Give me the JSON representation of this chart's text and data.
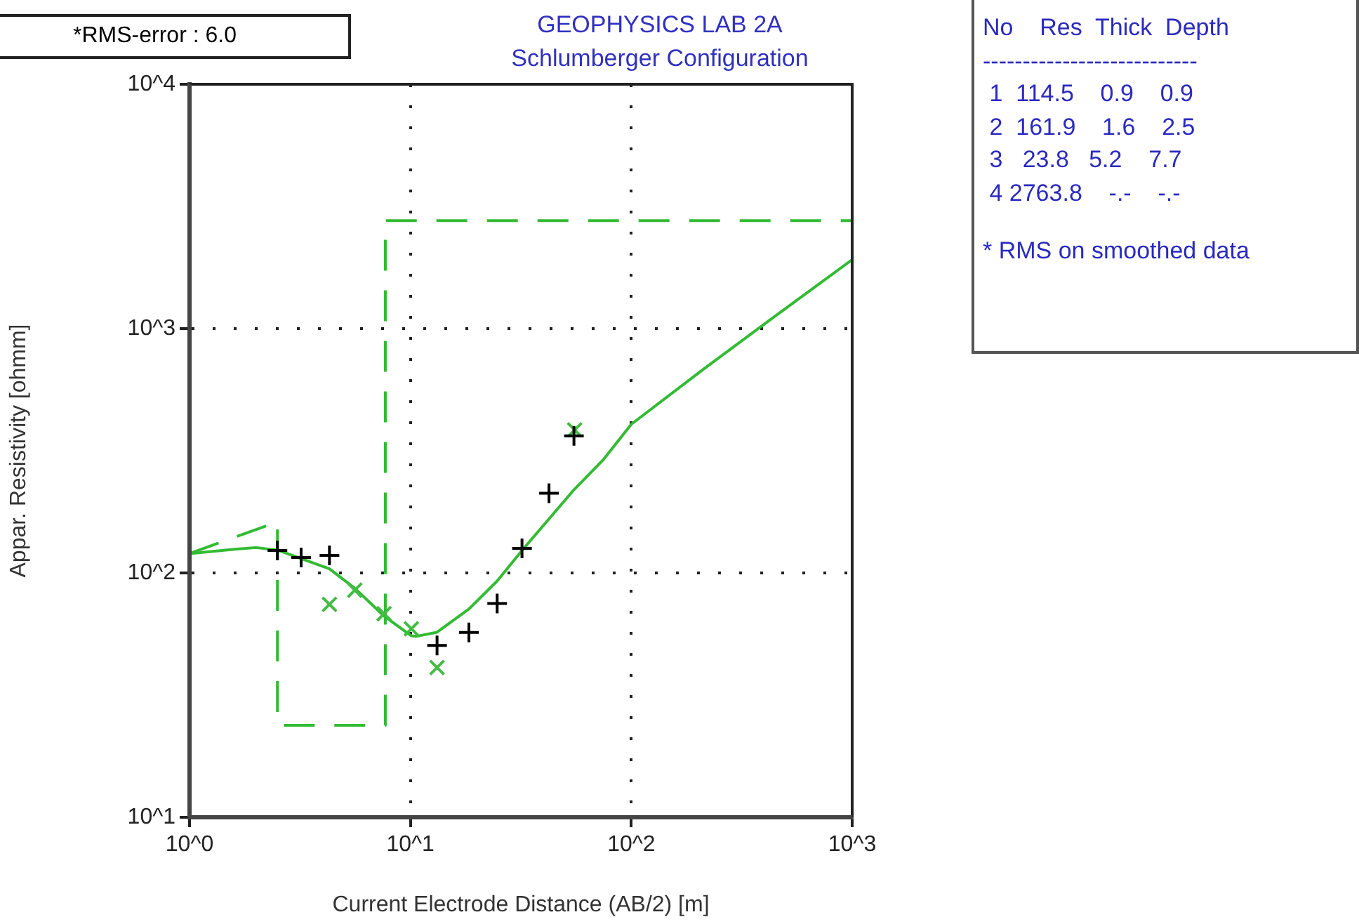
{
  "chart_data": {
    "type": "line",
    "title": "GEOPHYSICS LAB 2A",
    "subtitle": "Schlumberger Configuration",
    "xlabel": "Current Electrode Distance (AB/2) [m]",
    "ylabel": "Appar. Resistivity [ohmm]",
    "log": "xy",
    "grid": true,
    "legend": false,
    "xlim": [
      1,
      1000
    ],
    "xticks": [
      {
        "value": 1,
        "label": "10^0"
      },
      {
        "value": 10,
        "label": "10^1"
      },
      {
        "value": 100,
        "label": "10^2"
      },
      {
        "value": 1000,
        "label": "10^3"
      }
    ],
    "ylim": [
      10,
      10000
    ],
    "yticks": [
      {
        "value": 10,
        "label": "10^1"
      },
      {
        "value": 100,
        "label": "10^2"
      },
      {
        "value": 1000,
        "label": "10^3"
      },
      {
        "value": 10000,
        "label": "10^4"
      }
    ],
    "series": [
      {
        "color": "#33bb33",
        "line_style": "dashed",
        "marker": "none",
        "x": [
          1,
          2.5,
          2.5,
          7.7,
          7.7,
          1000
        ],
        "values": [
          120,
          161.9,
          23.8,
          23.8,
          2763.8,
          2763.8
        ]
      },
      {
        "color": "#33bb33",
        "line_style": "solid",
        "marker": "none",
        "x": [
          1,
          1.6,
          2,
          2.5,
          4.3,
          5.6,
          7.6,
          10.1,
          10.6,
          13.2,
          18.4,
          24.7,
          32,
          55,
          75,
          100,
          208,
          433,
          1000
        ],
        "values": [
          120,
          125,
          127,
          124,
          104,
          86.5,
          66.6,
          55.3,
          55,
          57.2,
          71.2,
          92.7,
          123.6,
          219,
          292,
          406,
          673,
          1100,
          1914
        ]
      },
      {
        "type": "scatter",
        "color": "#000000",
        "marker": "cross",
        "x": [
          2.5,
          3.2,
          4.3,
          13.2,
          18.4,
          24.7,
          32,
          42.4,
          55
        ],
        "values": [
          123.6,
          115.6,
          118,
          50.5,
          57.1,
          75,
          126,
          212,
          364
        ]
      },
      {
        "type": "scatter",
        "color": "#44bb44",
        "marker": "x",
        "x": [
          4.3,
          5.6,
          7.6,
          10.1,
          13.2,
          55.4
        ],
        "values": [
          74.4,
          85,
          68.1,
          59.1,
          41,
          385
        ]
      }
    ],
    "annotations": [
      "*RMS-error :  6.0",
      "No    Res  Thick  Depth",
      "---------------------------",
      " 1  114.5    0.9    0.9",
      " 2  161.9    1.6    2.5",
      " 3   23.8   5.2    7.7",
      " 4 2763.8    -.-    -.-",
      "* RMS on smoothed data"
    ]
  }
}
